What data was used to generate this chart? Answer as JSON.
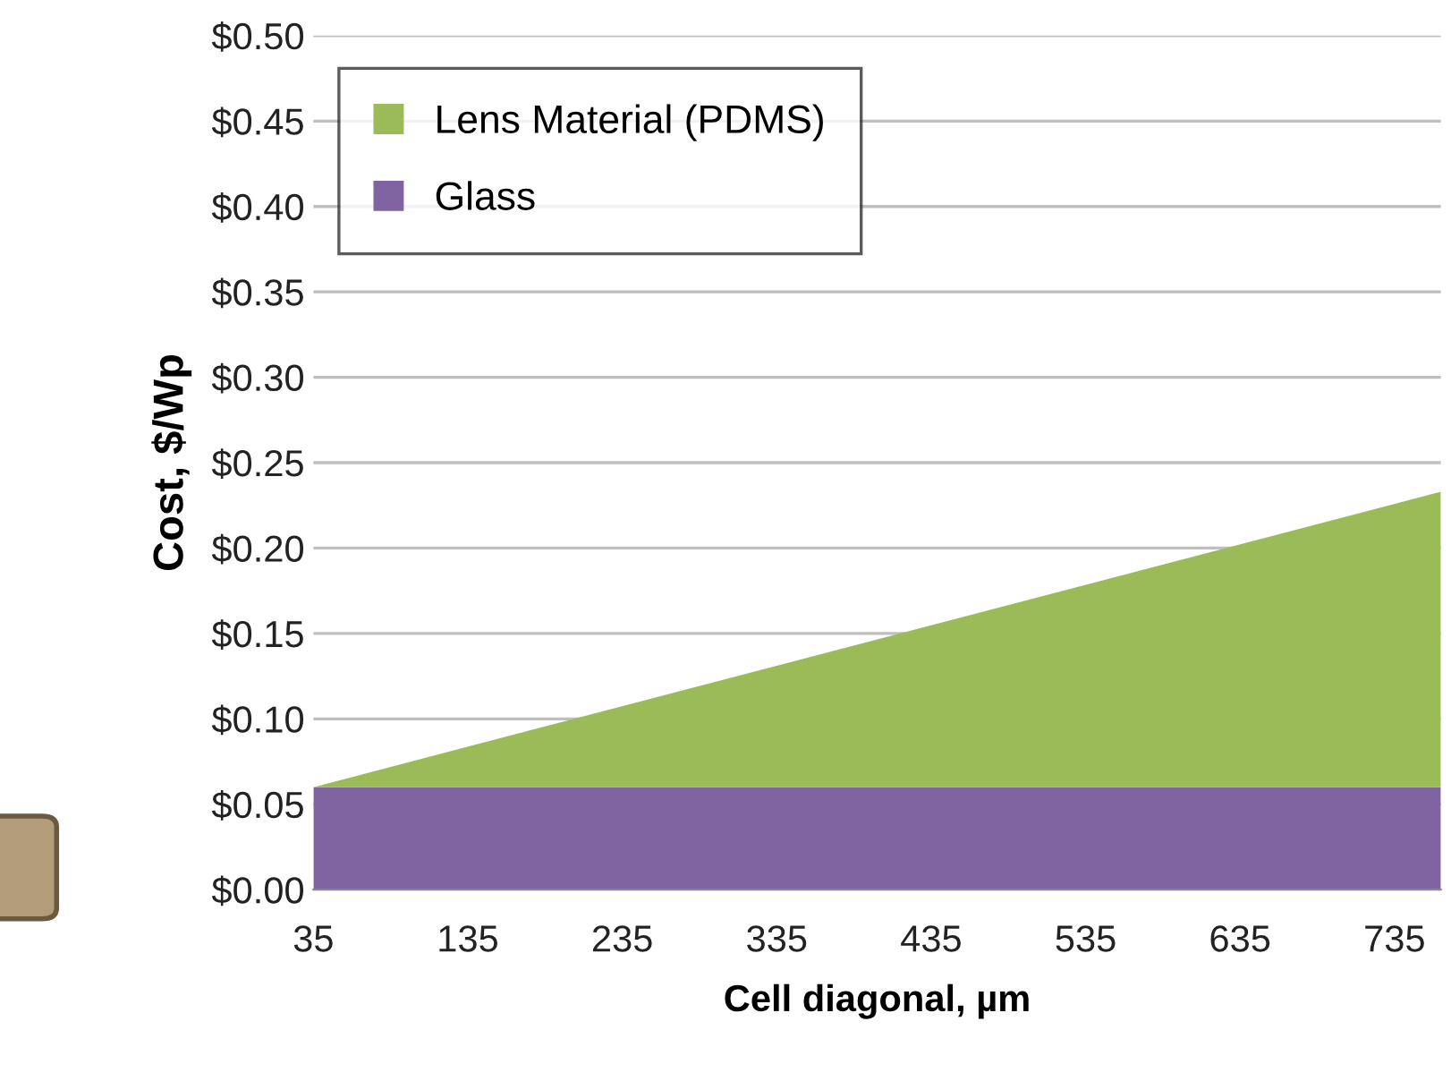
{
  "chart_data": {
    "type": "area",
    "stacked": true,
    "xlabel": "Cell diagonal, µm",
    "ylabel": "Cost, $/Wp",
    "x": [
      35,
      765
    ],
    "series": [
      {
        "name": "Glass",
        "color": "#8064a2",
        "values": [
          0.06,
          0.06
        ]
      },
      {
        "name": "Lens Material (PDMS)",
        "color": "#9bbb59",
        "values": [
          0,
          0.173
        ]
      }
    ],
    "xlim": [
      35,
      765
    ],
    "xticks": [
      35,
      135,
      235,
      335,
      435,
      535,
      635,
      735
    ],
    "ylim": [
      0,
      0.5
    ],
    "yticks": [
      {
        "value": 0,
        "label": "$0.00"
      },
      {
        "value": 0.05,
        "label": "$0.05"
      },
      {
        "value": 0.1,
        "label": "$0.10"
      },
      {
        "value": 0.15,
        "label": "$0.15"
      },
      {
        "value": 0.2,
        "label": "$0.20"
      },
      {
        "value": 0.25,
        "label": "$0.25"
      },
      {
        "value": 0.3,
        "label": "$0.30"
      },
      {
        "value": 0.35,
        "label": "$0.35"
      },
      {
        "value": 0.4,
        "label": "$0.40"
      },
      {
        "value": 0.45,
        "label": "$0.45"
      },
      {
        "value": 0.5,
        "label": "$0.50"
      }
    ],
    "grid": "y",
    "legend": "top left"
  }
}
